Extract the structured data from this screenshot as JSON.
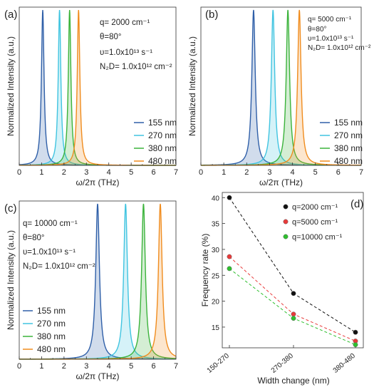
{
  "colors": {
    "s155": "#2f5fa8",
    "s270": "#40c4e0",
    "s380": "#3bb33b",
    "s480": "#f08c1e",
    "q2000": "#111111",
    "q5000": "#e83a3a",
    "q10000": "#2fbf2f"
  },
  "chart_data": [
    {
      "panel": "(a)",
      "type": "line",
      "xlabel": "ω/2π (THz)",
      "ylabel": "Normalized Intensity (a.u.)",
      "xlim": [
        0,
        7
      ],
      "xticks": [
        "0",
        "1",
        "2",
        "3",
        "4",
        "5",
        "6",
        "7"
      ],
      "annotations": {
        "q": "q= 2000 cm⁻¹",
        "theta": "θ=80°",
        "nu": "υ=1.0x10¹³ s⁻¹",
        "n2d": "N₂D= 1.0x10¹² cm⁻²"
      },
      "legend_position": "bottom-right",
      "series": [
        {
          "name": "155 nm",
          "color_key": "s155",
          "peak_x": 1.05,
          "width": 0.07
        },
        {
          "name": "270 nm",
          "color_key": "s270",
          "peak_x": 1.8,
          "width": 0.07
        },
        {
          "name": "380 nm",
          "color_key": "s380",
          "peak_x": 2.25,
          "width": 0.07
        },
        {
          "name": "480 nm",
          "color_key": "s480",
          "peak_x": 2.65,
          "width": 0.07
        }
      ]
    },
    {
      "panel": "(b)",
      "type": "line",
      "xlabel": "ω/2π (THz)",
      "ylabel": "Normalized Intensity (a.u.)",
      "xlim": [
        0,
        7
      ],
      "xticks": [
        "0",
        "1",
        "2",
        "3",
        "4",
        "5",
        "6",
        "7"
      ],
      "annotations": {
        "q": "q= 5000 cm⁻¹",
        "theta": "θ=80°",
        "nu": "υ=1.0x10¹³ s⁻¹",
        "n2d": "N₂D= 1.0x10¹² cm⁻²"
      },
      "legend_position": "bottom-right",
      "series": [
        {
          "name": "155 nm",
          "color_key": "s155",
          "peak_x": 2.3,
          "width": 0.09
        },
        {
          "name": "270 nm",
          "color_key": "s270",
          "peak_x": 3.15,
          "width": 0.09
        },
        {
          "name": "380 nm",
          "color_key": "s380",
          "peak_x": 3.8,
          "width": 0.09
        },
        {
          "name": "480 nm",
          "color_key": "s480",
          "peak_x": 4.3,
          "width": 0.09
        }
      ]
    },
    {
      "panel": "(c)",
      "type": "line",
      "xlabel": "ω/2π (THz)",
      "ylabel": "Normalized Intensity (a.u.)",
      "xlim": [
        0,
        7
      ],
      "xticks": [
        "0",
        "1",
        "2",
        "3",
        "4",
        "5",
        "6",
        "7"
      ],
      "annotations": {
        "q": "q= 10000 cm⁻¹",
        "theta": "θ=80°",
        "nu": "υ=1.0x10¹³ s⁻¹",
        "n2d": "N₂D= 1.0x10¹² cm⁻²"
      },
      "legend_position": "bottom-left",
      "series": [
        {
          "name": "155 nm",
          "color_key": "s155",
          "peak_x": 3.5,
          "width": 0.1
        },
        {
          "name": "270 nm",
          "color_key": "s270",
          "peak_x": 4.75,
          "width": 0.1
        },
        {
          "name": "380 nm",
          "color_key": "s380",
          "peak_x": 5.55,
          "width": 0.1
        },
        {
          "name": "480 nm",
          "color_key": "s480",
          "peak_x": 6.3,
          "width": 0.1
        }
      ]
    },
    {
      "panel": "(d)",
      "type": "line",
      "xlabel": "Width change (nm)",
      "ylabel": "Frequency rate (%)",
      "categories": [
        "150-270",
        "270-380",
        "380-480"
      ],
      "ylim": [
        11,
        41
      ],
      "yticks": [
        "15",
        "20",
        "25",
        "30",
        "35",
        "40"
      ],
      "legend_position": "top-right",
      "series": [
        {
          "name": "q=2000 cm⁻¹",
          "color_key": "q2000",
          "values": [
            40.0,
            21.5,
            14.0
          ]
        },
        {
          "name": "q=5000 cm⁻¹",
          "color_key": "q5000",
          "values": [
            28.6,
            17.5,
            12.3
          ]
        },
        {
          "name": "q=10000 cm⁻¹",
          "color_key": "q10000",
          "values": [
            26.3,
            16.7,
            11.6
          ]
        }
      ]
    }
  ]
}
